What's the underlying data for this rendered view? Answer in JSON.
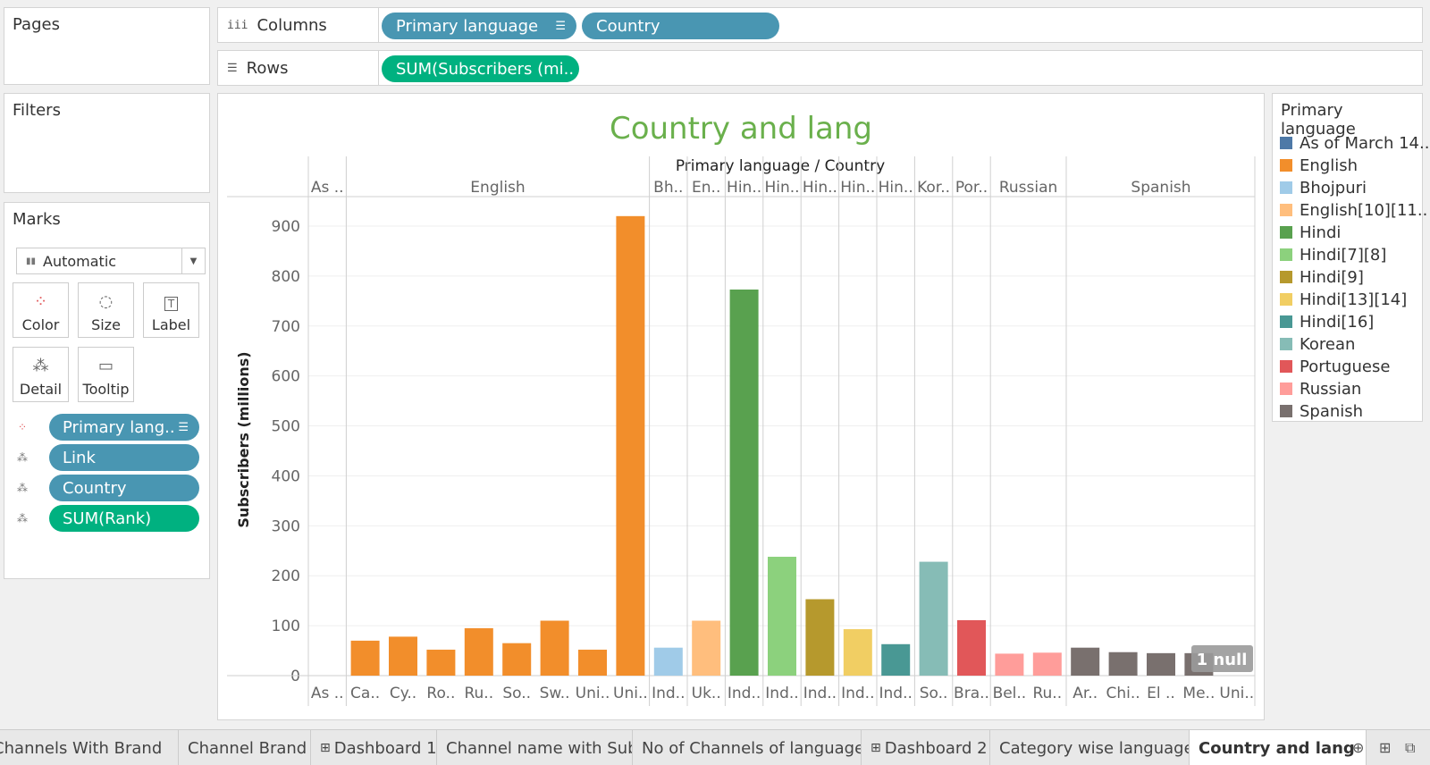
{
  "shelves": {
    "pages": "Pages",
    "filters": "Filters",
    "marks": "Marks",
    "columns_label": "Columns",
    "rows_label": "Rows",
    "columns_pills": [
      "Primary language",
      "Country"
    ],
    "rows_pills": [
      "SUM(Subscribers (mi.."
    ]
  },
  "marks": {
    "type": "Automatic",
    "buttons": [
      "Color",
      "Size",
      "Label",
      "Detail",
      "Tooltip"
    ],
    "fields": [
      {
        "label": "Primary lang..",
        "icon": "color-icon",
        "kind": "dimension"
      },
      {
        "label": "Link",
        "icon": "detail-icon",
        "kind": "dimension"
      },
      {
        "label": "Country",
        "icon": "detail-icon",
        "kind": "dimension"
      },
      {
        "label": "SUM(Rank)",
        "icon": "detail-icon",
        "kind": "measure"
      }
    ]
  },
  "legend": {
    "title": "Primary language",
    "items": [
      {
        "label": "As of March 14..",
        "color": "#4e79a7"
      },
      {
        "label": "English",
        "color": "#f28e2b"
      },
      {
        "label": "Bhojpuri",
        "color": "#a0cbe8"
      },
      {
        "label": "English[10][11..",
        "color": "#ffbe7d"
      },
      {
        "label": "Hindi",
        "color": "#59a14f"
      },
      {
        "label": "Hindi[7][8]",
        "color": "#8cd17d"
      },
      {
        "label": "Hindi[9]",
        "color": "#b6992d"
      },
      {
        "label": "Hindi[13][14]",
        "color": "#f1ce63"
      },
      {
        "label": "Hindi[16]",
        "color": "#499894"
      },
      {
        "label": "Korean",
        "color": "#86bcb6"
      },
      {
        "label": "Portuguese",
        "color": "#e15759"
      },
      {
        "label": "Russian",
        "color": "#ff9d9a"
      },
      {
        "label": "Spanish",
        "color": "#79706e"
      }
    ]
  },
  "chart_data": {
    "type": "bar",
    "title": "Country and lang",
    "header_label": "Primary language  /  Country",
    "ylabel": "Subscribers (millions)",
    "ylim": [
      0,
      960
    ],
    "yticks": [
      0,
      100,
      200,
      300,
      400,
      500,
      600,
      700,
      800,
      900
    ],
    "null_badge": "1 null",
    "groups": [
      {
        "label": "As ..",
        "color": "#4e79a7",
        "categories": [
          "As .."
        ],
        "values": [
          0
        ]
      },
      {
        "label": "English",
        "color": "#f28e2b",
        "categories": [
          "Ca..",
          "Cy..",
          "Ro..",
          "Ru..",
          "So..",
          "Sw..",
          "Uni..",
          "Uni.."
        ],
        "values": [
          70,
          78,
          52,
          95,
          65,
          110,
          52,
          920
        ]
      },
      {
        "label": "Bh..",
        "color": "#a0cbe8",
        "categories": [
          "Ind.."
        ],
        "values": [
          56
        ]
      },
      {
        "label": "En..",
        "color": "#ffbe7d",
        "categories": [
          "Uk.."
        ],
        "values": [
          110
        ]
      },
      {
        "label": "Hin..",
        "color": "#59a14f",
        "categories": [
          "Ind.."
        ],
        "values": [
          773
        ]
      },
      {
        "label": "Hin..",
        "color": "#8cd17d",
        "categories": [
          "Ind.."
        ],
        "values": [
          238
        ]
      },
      {
        "label": "Hin..",
        "color": "#b6992d",
        "categories": [
          "Ind.."
        ],
        "values": [
          153
        ]
      },
      {
        "label": "Hin..",
        "color": "#f1ce63",
        "categories": [
          "Ind.."
        ],
        "values": [
          93
        ]
      },
      {
        "label": "Hin..",
        "color": "#499894",
        "categories": [
          "Ind.."
        ],
        "values": [
          63
        ]
      },
      {
        "label": "Kor..",
        "color": "#86bcb6",
        "categories": [
          "So.."
        ],
        "values": [
          228
        ]
      },
      {
        "label": "Por..",
        "color": "#e15759",
        "categories": [
          "Bra.."
        ],
        "values": [
          111
        ]
      },
      {
        "label": "Russian",
        "color": "#ff9d9a",
        "categories": [
          "Bel..",
          "Ru.."
        ],
        "values": [
          44,
          46
        ]
      },
      {
        "label": "Spanish",
        "color": "#79706e",
        "categories": [
          "Ar..",
          "Chi..",
          "El ..",
          "Me..",
          "Uni.."
        ],
        "values": [
          56,
          47,
          45,
          45,
          0
        ]
      }
    ]
  },
  "tabs": [
    {
      "label": "f Channels With Brand",
      "icon": ""
    },
    {
      "label": "Channel Brand",
      "icon": ""
    },
    {
      "label": "Dashboard 1",
      "icon": "⊞"
    },
    {
      "label": "Channel name with Sub",
      "icon": ""
    },
    {
      "label": "No of Channels of language",
      "icon": ""
    },
    {
      "label": "Dashboard 2",
      "icon": "⊞"
    },
    {
      "label": "Category wise language",
      "icon": ""
    },
    {
      "label": "Country and lang",
      "icon": "",
      "active": true
    }
  ]
}
